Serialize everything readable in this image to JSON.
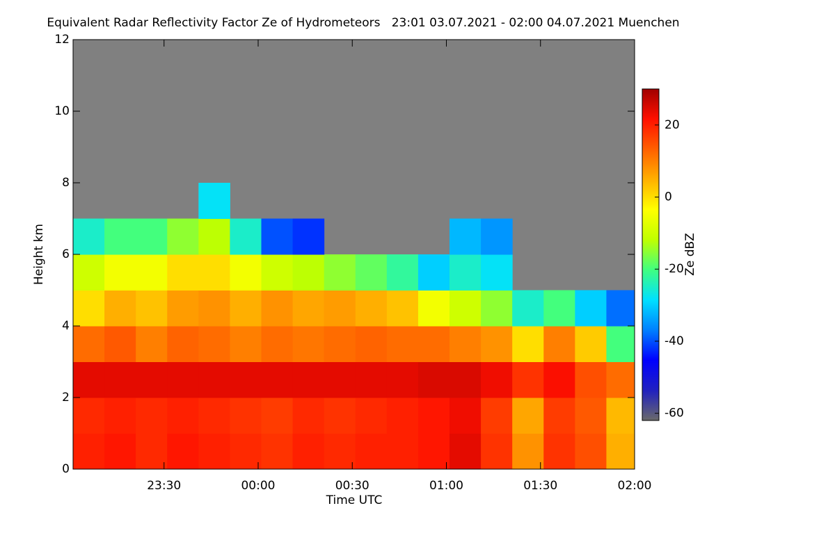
{
  "chart_data": {
    "type": "heatmap",
    "title": "Equivalent Radar Reflectivity Factor Ze of Hydrometeors   23:01 03.07.2021 - 02:00 04.07.2021 Muenchen",
    "x_label": "Time UTC",
    "y_label": "Height km",
    "colorbar_label": "Ze dBZ",
    "xlim": [
      "23:01",
      "02:00"
    ],
    "xticks": [
      "23:30",
      "00:00",
      "00:30",
      "01:00",
      "01:30",
      "02:00"
    ],
    "ylim": [
      0,
      12
    ],
    "yticks": [
      0,
      2,
      4,
      6,
      8,
      10,
      12
    ],
    "zlim": [
      -62,
      30
    ],
    "zticks": [
      -60,
      -40,
      -20,
      0,
      20
    ],
    "colormap": [
      "#6a6a6a",
      "#2020c0",
      "#0000ff",
      "#0080ff",
      "#00e0ff",
      "#40ff80",
      "#c0ff00",
      "#ffff00",
      "#ffb000",
      "#ff6000",
      "#ff1000",
      "#a00000"
    ],
    "background": "#808080",
    "x": [
      "23:06",
      "23:16",
      "23:26",
      "23:36",
      "23:46",
      "23:56",
      "00:06",
      "00:16",
      "00:26",
      "00:36",
      "00:46",
      "00:56",
      "01:06",
      "01:16",
      "01:26",
      "01:36",
      "01:46",
      "01:56"
    ],
    "y": [
      0.5,
      1.5,
      2.5,
      3.5,
      4.5,
      5.5,
      6.5,
      7.5,
      8.5,
      9.5,
      10.5,
      11.5
    ],
    "z": [
      [
        20,
        21,
        19,
        21,
        20,
        19,
        18,
        20,
        19,
        20,
        20,
        21,
        24,
        18,
        8,
        18,
        15,
        5
      ],
      [
        19,
        20,
        19,
        20,
        19,
        18,
        17,
        19,
        18,
        19,
        20,
        21,
        23,
        17,
        6,
        17,
        14,
        4
      ],
      [
        24,
        24,
        24,
        24,
        24,
        24,
        24,
        24,
        24,
        24,
        24,
        25,
        25,
        23,
        18,
        22,
        15,
        12
      ],
      [
        12,
        14,
        10,
        13,
        12,
        10,
        12,
        11,
        12,
        13,
        12,
        12,
        10,
        8,
        0,
        10,
        2,
        -20
      ],
      [
        0,
        5,
        3,
        7,
        8,
        5,
        8,
        6,
        7,
        5,
        3,
        -5,
        -10,
        -15,
        -25,
        -20,
        -30,
        -38
      ],
      [
        -10,
        -5,
        -5,
        0,
        0,
        -5,
        -10,
        -12,
        -15,
        -18,
        -22,
        -30,
        -25,
        -28,
        null,
        null,
        null,
        null
      ],
      [
        -25,
        -20,
        -20,
        -15,
        -12,
        -25,
        -40,
        -42,
        null,
        null,
        null,
        null,
        -32,
        -35,
        null,
        null,
        null,
        null
      ],
      [
        null,
        null,
        null,
        null,
        -28,
        null,
        null,
        null,
        null,
        null,
        null,
        null,
        null,
        null,
        null,
        null,
        null,
        null
      ],
      [
        null,
        null,
        null,
        null,
        null,
        null,
        null,
        null,
        null,
        null,
        null,
        null,
        null,
        null,
        null,
        null,
        null,
        null
      ],
      [
        null,
        null,
        null,
        null,
        null,
        null,
        null,
        null,
        null,
        null,
        null,
        null,
        null,
        null,
        null,
        null,
        null,
        null
      ],
      [
        null,
        null,
        null,
        null,
        null,
        null,
        null,
        null,
        null,
        null,
        null,
        null,
        null,
        null,
        null,
        null,
        null,
        null
      ],
      [
        null,
        null,
        null,
        null,
        null,
        null,
        null,
        null,
        null,
        null,
        null,
        null,
        null,
        null,
        null,
        null,
        null,
        null
      ]
    ]
  }
}
